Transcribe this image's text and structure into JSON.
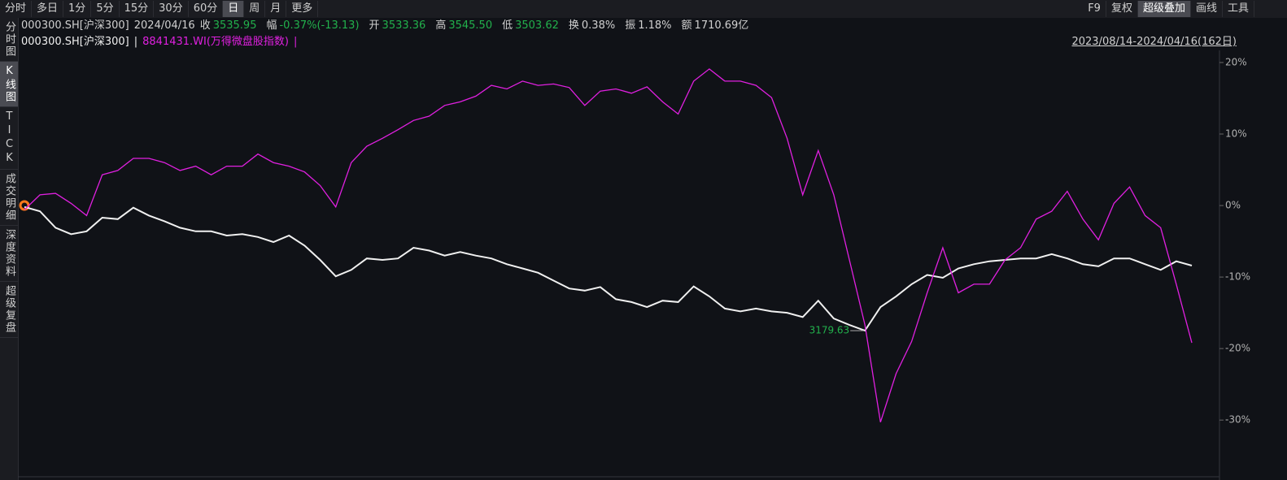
{
  "toolbar": {
    "periods": [
      "分时",
      "多日",
      "1分",
      "5分",
      "15分",
      "30分",
      "60分",
      "日",
      "周",
      "月",
      "更多"
    ],
    "active_period": 7,
    "tools": [
      "F9",
      "复权",
      "超级叠加",
      "画线",
      "工具"
    ],
    "active_tool": 2
  },
  "sidebar": [
    "分时图",
    "K线图",
    "TICK",
    "成交明细",
    "深度资料",
    "超级复盘"
  ],
  "active_tab": 1,
  "quote": {
    "code": "000300.SH[沪深300]",
    "date": "2024/04/16",
    "items": [
      {
        "label": "收",
        "value": "3535.95",
        "color": "#22b14c"
      },
      {
        "label": "幅",
        "value": "-0.37%(-13.13)",
        "color": "#22b14c"
      },
      {
        "label": "开",
        "value": "3533.36",
        "color": "#22b14c"
      },
      {
        "label": "高",
        "value": "3545.50",
        "color": "#22b14c"
      },
      {
        "label": "低",
        "value": "3503.62",
        "color": "#22b14c"
      },
      {
        "label": "换",
        "value": "0.38%",
        "color": "#d0d0d0"
      },
      {
        "label": "振",
        "value": "1.18%",
        "color": "#d0d0d0"
      },
      {
        "label": "额",
        "value": "1710.69亿",
        "color": "#d0d0d0"
      }
    ]
  },
  "legend_separator": "|",
  "date_range": "2023/08/14-2024/04/16(162日)",
  "chart_data": {
    "type": "line",
    "annotation": "3179.63",
    "series": [
      {
        "name": "000300.SH[沪深300]",
        "color": "#f0f0f0",
        "values": [
          -0.2,
          -0.8,
          -3.1,
          -4.0,
          -3.6,
          -1.7,
          -1.9,
          -0.3,
          -1.4,
          -2.2,
          -3.1,
          -3.6,
          -3.6,
          -4.2,
          -4.0,
          -4.4,
          -5.1,
          -4.2,
          -5.6,
          -7.6,
          -9.9,
          -9.0,
          -7.4,
          -7.6,
          -7.4,
          -5.9,
          -6.3,
          -7.0,
          -6.5,
          -7.0,
          -7.4,
          -8.2,
          -8.8,
          -9.4,
          -10.5,
          -11.6,
          -11.9,
          -11.4,
          -13.1,
          -13.5,
          -14.2,
          -13.3,
          -13.5,
          -11.3,
          -12.7,
          -14.4,
          -14.8,
          -14.4,
          -14.8,
          -15.0,
          -15.6,
          -13.3,
          -15.8,
          -16.7,
          -17.5,
          -14.2,
          -12.7,
          -11.0,
          -9.7,
          -10.1,
          -8.8,
          -8.2,
          -7.8,
          -7.6,
          -7.4,
          -7.4,
          -6.8,
          -7.4,
          -8.2,
          -8.5,
          -7.4,
          -7.4,
          -8.2,
          -9.0,
          -7.8,
          -8.4
        ]
      },
      {
        "name": "8841431.WI(万得微盘股指数)",
        "color": "#e020e0",
        "values": [
          -0.6,
          1.5,
          1.7,
          0.3,
          -1.4,
          4.3,
          4.9,
          6.6,
          6.6,
          6.0,
          4.9,
          5.5,
          4.3,
          5.5,
          5.5,
          7.2,
          6.0,
          5.5,
          4.7,
          2.8,
          -0.2,
          6.0,
          8.3,
          9.4,
          10.6,
          11.9,
          12.5,
          14.0,
          14.5,
          15.3,
          16.8,
          16.3,
          17.4,
          16.8,
          17.0,
          16.5,
          14.0,
          16.0,
          16.3,
          15.7,
          16.6,
          14.5,
          12.8,
          17.4,
          19.1,
          17.4,
          17.4,
          16.8,
          15.1,
          9.4,
          1.5,
          7.7,
          1.5,
          -7.6,
          -16.7,
          -30.3,
          -23.5,
          -19.0,
          -12.2,
          -5.9,
          -12.2,
          -11.0,
          -11.0,
          -7.6,
          -5.9,
          -1.9,
          -0.8,
          2.0,
          -1.9,
          -4.8,
          0.3,
          2.6,
          -1.4,
          -3.1,
          -11.0,
          -19.2
        ]
      }
    ],
    "ylim": [
      -37.7,
      21.7
    ],
    "yticks": [
      {
        "value": 20,
        "label": "20%"
      },
      {
        "value": 10,
        "label": "10%"
      },
      {
        "value": 0,
        "label": "0%"
      },
      {
        "value": -10,
        "label": "-10%"
      },
      {
        "value": -20,
        "label": "-20%"
      },
      {
        "value": -30,
        "label": "-30%"
      }
    ]
  }
}
